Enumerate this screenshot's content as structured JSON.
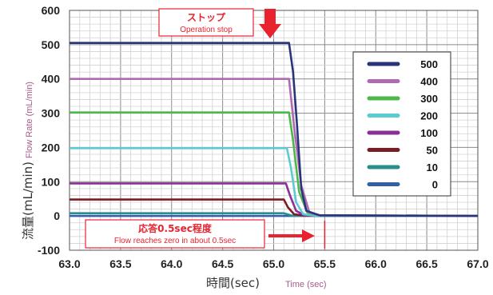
{
  "chart_data": {
    "type": "line",
    "title": "",
    "ylabel": "流量(mL/min)",
    "ylabel_en": "Flow Rate (mL/min)",
    "xlabel": "時間(sec)",
    "xlabel_en": "Time (sec)",
    "xlim": [
      63.0,
      67.0
    ],
    "ylim": [
      -100,
      600
    ],
    "x_ticks": [
      "63.0",
      "63.5",
      "64.0",
      "64.5",
      "65.0",
      "65.5",
      "66.0",
      "66.5",
      "67.0"
    ],
    "y_ticks": [
      "600",
      "500",
      "400",
      "300",
      "200",
      "100",
      "0",
      "-100"
    ],
    "grid": true,
    "legend_position": "right",
    "series": [
      {
        "name": "500",
        "color": "#28357a",
        "x": [
          63.0,
          65.15,
          65.19,
          65.23,
          65.27,
          65.32,
          65.45,
          67.0
        ],
        "y": [
          505,
          505,
          420,
          260,
          80,
          15,
          2,
          0
        ]
      },
      {
        "name": "400",
        "color": "#b06ab2",
        "x": [
          63.0,
          65.15,
          65.2,
          65.27,
          65.35,
          65.45,
          67.0
        ],
        "y": [
          400,
          400,
          260,
          90,
          10,
          2,
          0
        ]
      },
      {
        "name": "300",
        "color": "#4cb84a",
        "x": [
          63.0,
          65.15,
          65.19,
          65.25,
          65.33,
          65.45,
          67.0
        ],
        "y": [
          302,
          302,
          220,
          70,
          10,
          2,
          0
        ]
      },
      {
        "name": "200",
        "color": "#5bcbd3",
        "x": [
          63.0,
          65.13,
          65.17,
          65.22,
          65.29,
          65.4,
          67.0
        ],
        "y": [
          198,
          198,
          140,
          40,
          5,
          1,
          0
        ]
      },
      {
        "name": "100",
        "color": "#8b2f97",
        "x": [
          63.0,
          65.12,
          65.16,
          65.22,
          65.3,
          67.0
        ],
        "y": [
          95,
          95,
          60,
          15,
          2,
          0
        ]
      },
      {
        "name": "50",
        "color": "#7a1e23",
        "x": [
          63.0,
          65.1,
          65.14,
          65.2,
          65.3,
          67.0
        ],
        "y": [
          48,
          48,
          25,
          5,
          1,
          0
        ]
      },
      {
        "name": "10",
        "color": "#2a8f8a",
        "x": [
          63.0,
          65.1,
          65.18,
          67.0
        ],
        "y": [
          8,
          8,
          1,
          0
        ]
      },
      {
        "name": "0",
        "color": "#2f5fa8",
        "x": [
          63.0,
          67.0
        ],
        "y": [
          0,
          0
        ]
      }
    ],
    "annotations": [
      {
        "text": "ストップ",
        "subtext": "Operation stop",
        "x": 64.75,
        "y": 555
      },
      {
        "text": "応答0.5sec程度",
        "subtext": "Flow reaches zero in about 0.5sec",
        "x": 64.2,
        "y": -55
      }
    ],
    "marker_line_x": 65.5,
    "accent_color": "#e8232f"
  }
}
